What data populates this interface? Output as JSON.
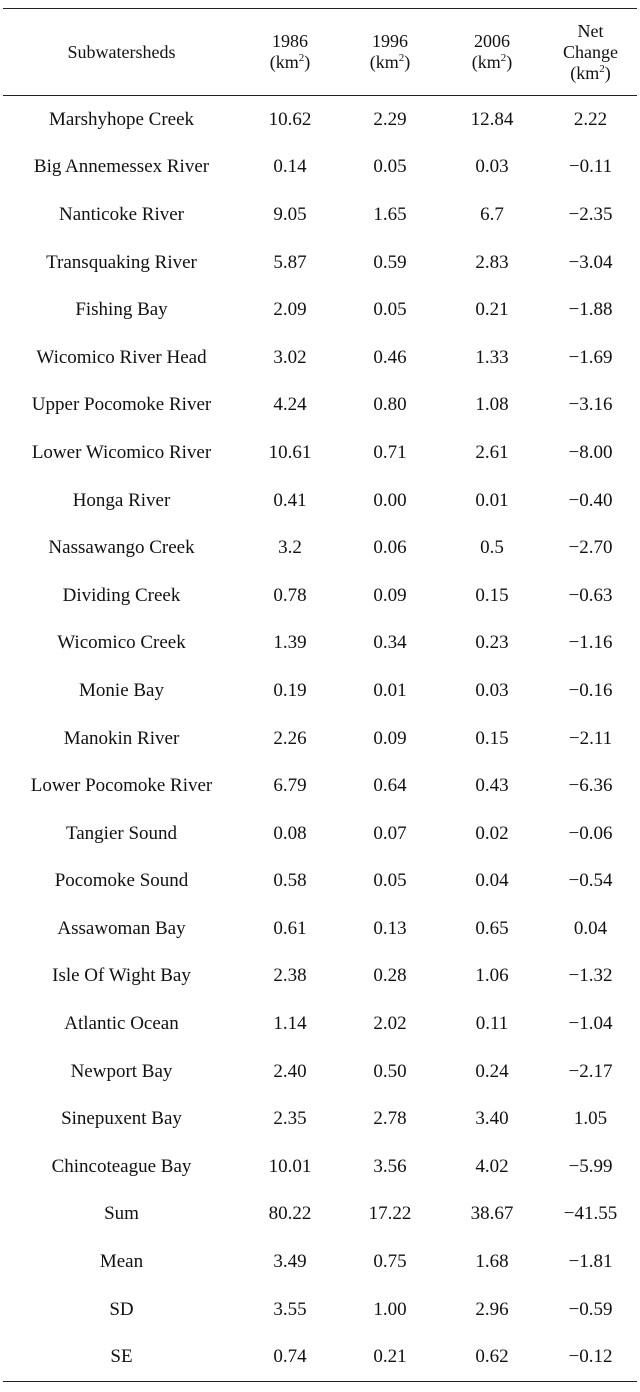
{
  "table": {
    "headers": [
      {
        "line1": "Subwatersheds",
        "line2": "",
        "line3": "",
        "sup": ""
      },
      {
        "line1": "1986",
        "line2": "(km",
        "sup": "2",
        "line2_end": ")",
        "line3": ""
      },
      {
        "line1": "1996",
        "line2": "(km",
        "sup": "2",
        "line2_end": ")",
        "line3": ""
      },
      {
        "line1": "2006",
        "line2": "(km",
        "sup": "2",
        "line2_end": ")",
        "line3": ""
      },
      {
        "line1": "Net",
        "line2": "Change",
        "line3": "(km",
        "sup": "2",
        "line3_end": ")"
      }
    ],
    "rows": [
      [
        "Marshyhope Creek",
        "10.62",
        "2.29",
        "12.84",
        "2.22"
      ],
      [
        "Big Annemessex River",
        "0.14",
        "0.05",
        "0.03",
        "−0.11"
      ],
      [
        "Nanticoke River",
        "9.05",
        "1.65",
        "6.7",
        "−2.35"
      ],
      [
        "Transquaking River",
        "5.87",
        "0.59",
        "2.83",
        "−3.04"
      ],
      [
        "Fishing Bay",
        "2.09",
        "0.05",
        "0.21",
        "−1.88"
      ],
      [
        "Wicomico River Head",
        "3.02",
        "0.46",
        "1.33",
        "−1.69"
      ],
      [
        "Upper Pocomoke River",
        "4.24",
        "0.80",
        "1.08",
        "−3.16"
      ],
      [
        "Lower Wicomico River",
        "10.61",
        "0.71",
        "2.61",
        "−8.00"
      ],
      [
        "Honga River",
        "0.41",
        "0.00",
        "0.01",
        "−0.40"
      ],
      [
        "Nassawango Creek",
        "3.2",
        "0.06",
        "0.5",
        "−2.70"
      ],
      [
        "Dividing Creek",
        "0.78",
        "0.09",
        "0.15",
        "−0.63"
      ],
      [
        "Wicomico Creek",
        "1.39",
        "0.34",
        "0.23",
        "−1.16"
      ],
      [
        "Monie Bay",
        "0.19",
        "0.01",
        "0.03",
        "−0.16"
      ],
      [
        "Manokin River",
        "2.26",
        "0.09",
        "0.15",
        "−2.11"
      ],
      [
        "Lower Pocomoke River",
        "6.79",
        "0.64",
        "0.43",
        "−6.36"
      ],
      [
        "Tangier Sound",
        "0.08",
        "0.07",
        "0.02",
        "−0.06"
      ],
      [
        "Pocomoke Sound",
        "0.58",
        "0.05",
        "0.04",
        "−0.54"
      ],
      [
        "Assawoman Bay",
        "0.61",
        "0.13",
        "0.65",
        "0.04"
      ],
      [
        "Isle Of Wight Bay",
        "2.38",
        "0.28",
        "1.06",
        "−1.32"
      ],
      [
        "Atlantic Ocean",
        "1.14",
        "2.02",
        "0.11",
        "−1.04"
      ],
      [
        "Newport Bay",
        "2.40",
        "0.50",
        "0.24",
        "−2.17"
      ],
      [
        "Sinepuxent Bay",
        "2.35",
        "2.78",
        "3.40",
        "1.05"
      ],
      [
        "Chincoteague Bay",
        "10.01",
        "3.56",
        "4.02",
        "−5.99"
      ],
      [
        "Sum",
        "80.22",
        "17.22",
        "38.67",
        "−41.55"
      ],
      [
        "Mean",
        "3.49",
        "0.75",
        "1.68",
        "−1.81"
      ],
      [
        "SD",
        "3.55",
        "1.00",
        "2.96",
        "−0.59"
      ],
      [
        "SE",
        "0.74",
        "0.21",
        "0.62",
        "−0.12"
      ]
    ]
  }
}
